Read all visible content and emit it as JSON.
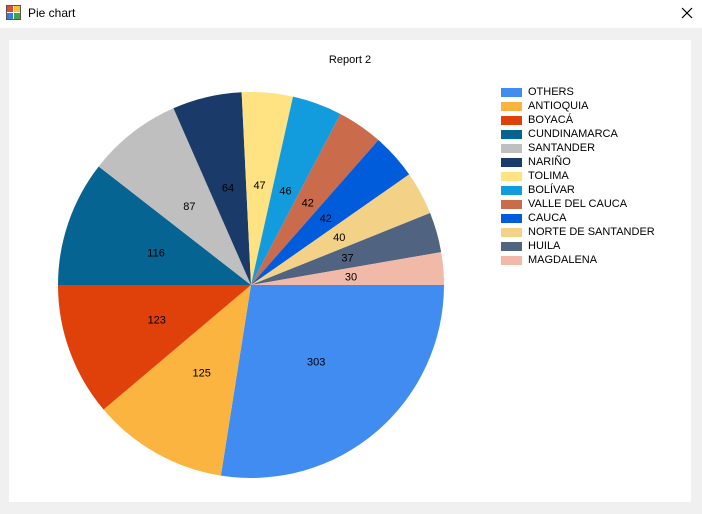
{
  "window": {
    "title": "Pie chart"
  },
  "chart_data": {
    "type": "pie",
    "title": "Report 2",
    "legend_position": "right",
    "series": [
      {
        "label": "OTHERS",
        "value": 303,
        "color": "#418cf0"
      },
      {
        "label": "ANTIOQUIA",
        "value": 125,
        "color": "#fcb441"
      },
      {
        "label": "BOYACÁ",
        "value": 123,
        "color": "#e0400a"
      },
      {
        "label": "CUNDINAMARCA",
        "value": 116,
        "color": "#056492"
      },
      {
        "label": "SANTANDER",
        "value": 87,
        "color": "#bfbfbf"
      },
      {
        "label": "NARIÑO",
        "value": 64,
        "color": "#1a3b69"
      },
      {
        "label": "TOLIMA",
        "value": 47,
        "color": "#ffe382"
      },
      {
        "label": "BOLÍVAR",
        "value": 46,
        "color": "#129cdd"
      },
      {
        "label": "VALLE DEL CAUCA",
        "value": 42,
        "color": "#ca6b4b"
      },
      {
        "label": "CAUCA",
        "value": 42,
        "color": "#005cdb"
      },
      {
        "label": "NORTE DE SANTANDER",
        "value": 40,
        "color": "#f3d288"
      },
      {
        "label": "HUILA",
        "value": 37,
        "color": "#506381"
      },
      {
        "label": "MAGDALENA",
        "value": 30,
        "color": "#f1b9a8"
      }
    ]
  }
}
